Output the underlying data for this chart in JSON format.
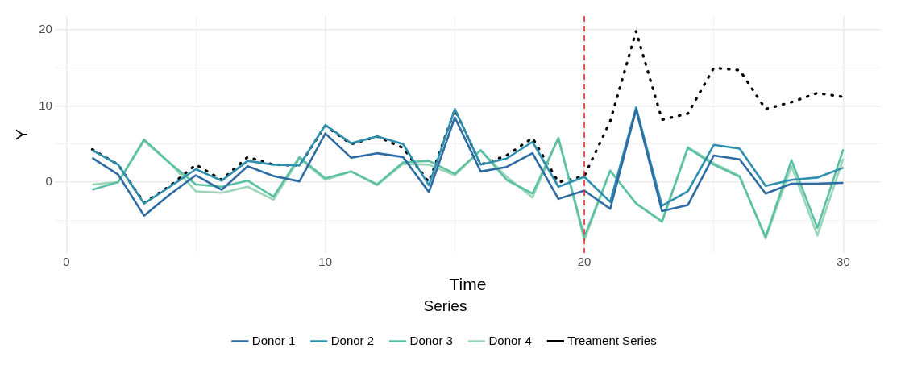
{
  "chart_data": {
    "type": "line",
    "xlabel": "Time",
    "ylabel": "Y",
    "legend_title": "Series",
    "x": [
      1,
      2,
      3,
      4,
      5,
      6,
      7,
      8,
      9,
      10,
      11,
      12,
      13,
      14,
      15,
      16,
      17,
      18,
      19,
      20,
      21,
      22,
      23,
      24,
      25,
      26,
      27,
      28,
      29,
      30
    ],
    "series": [
      {
        "name": "Donor 1",
        "color": "#2f6ba3",
        "values": [
          3.2,
          1,
          -4.4,
          -1.6,
          0.9,
          -1,
          2.1,
          0.8,
          0.1,
          6.4,
          3.2,
          3.8,
          3.3,
          -1.3,
          8.5,
          1.4,
          2,
          3.8,
          -2.2,
          -1.1,
          -3.5,
          9.5,
          -3.8,
          -3,
          3.5,
          3,
          -1.5,
          -0.2,
          -0.2,
          -0.1
        ]
      },
      {
        "name": "Donor 2",
        "color": "#2e8fae",
        "values": [
          4.2,
          2.3,
          -2.8,
          -0.6,
          1.7,
          0.2,
          2.8,
          2.3,
          2.2,
          7.5,
          5.1,
          6,
          5,
          -0.4,
          9.6,
          2.3,
          3.1,
          5.3,
          -0.6,
          0.7,
          -2.6,
          9.8,
          -3.1,
          -1.2,
          4.9,
          4.4,
          -0.5,
          0.3,
          0.6,
          1.9
        ]
      },
      {
        "name": "Donor 3",
        "color": "#5cc0a4",
        "values": [
          -1,
          0,
          5.6,
          2.5,
          -0.3,
          -0.6,
          0.2,
          -1.9,
          3.3,
          0.5,
          1.4,
          -0.3,
          2.6,
          2.8,
          1.1,
          4.2,
          0.3,
          -1.5,
          5.8,
          -7.2,
          1.5,
          -2.8,
          -5.2,
          4.5,
          2.3,
          0.7,
          -7.2,
          2.9,
          -6,
          4.3
        ]
      },
      {
        "name": "Donor 4",
        "color": "#9ad6b8",
        "values": [
          -0.3,
          0,
          5.4,
          2.5,
          -1.2,
          -1.4,
          -0.6,
          -2.3,
          3.1,
          0.3,
          1.4,
          -0.4,
          2.4,
          2.3,
          0.9,
          4.2,
          0.7,
          -2,
          5.8,
          -7.6,
          1.5,
          -2.8,
          -5.1,
          4.6,
          2.5,
          0.8,
          -7.4,
          2.1,
          -7,
          3.1
        ]
      },
      {
        "name": "Treament Series",
        "color": "#000000",
        "line_style": "dotted",
        "values": [
          4.3,
          2.3,
          -2.7,
          -0.5,
          2.3,
          0.3,
          3.3,
          2.3,
          2.2,
          7.4,
          5,
          6,
          4.5,
          0,
          9.5,
          2.3,
          3.5,
          5.8,
          0,
          0.8,
          8,
          19.8,
          8.2,
          9,
          15,
          14.7,
          9.6,
          10.5,
          11.7,
          11.2
        ]
      }
    ],
    "xlim": [
      -0.45,
      31.45
    ],
    "xticks": [
      0,
      {
        "value": 5,
        "label": null
      },
      10,
      {
        "value": 15,
        "label": null
      },
      20,
      {
        "value": 25,
        "label": null
      },
      30
    ],
    "ylim": [
      -9.3,
      21.8
    ],
    "yticks": [
      {
        "value": -5,
        "label": null
      },
      0,
      {
        "value": 5,
        "label": null
      },
      10,
      {
        "value": 15,
        "label": null
      },
      20
    ],
    "ref_lines": [
      {
        "axis": "x",
        "value": 20,
        "color": "#ee2222",
        "line_style": "dashed"
      }
    ],
    "grid": true,
    "legend": "bottom",
    "line_style": "solid",
    "marker": "none"
  }
}
